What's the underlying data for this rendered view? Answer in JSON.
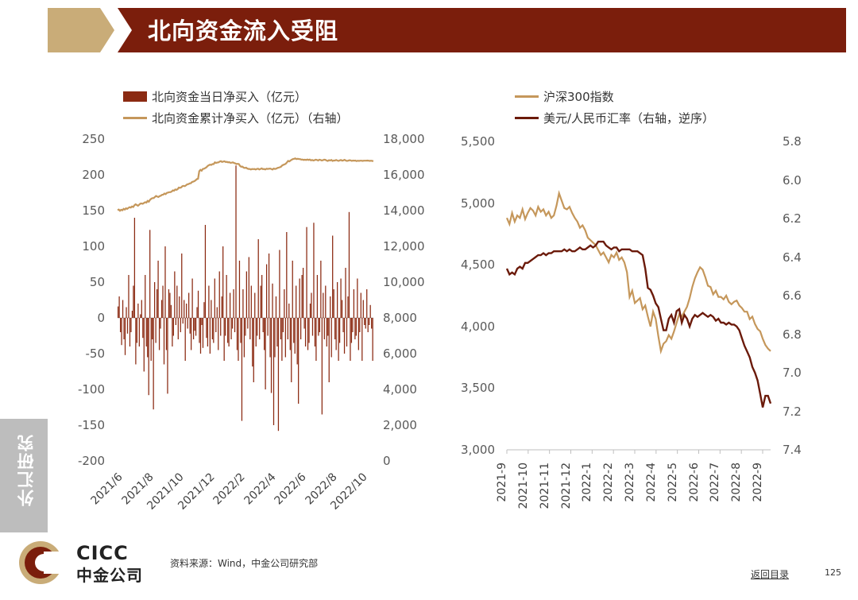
{
  "header": {
    "title": "北向资金流入受阻"
  },
  "sidebar": {
    "label": "外汇研究"
  },
  "footer": {
    "logo_en": "CICC",
    "logo_cn": "中金公司",
    "source": "资料来源：Wind，中金公司研究部",
    "back_link": "返回目录",
    "page_number": "125"
  },
  "colors": {
    "brand": "#7b1e0c",
    "gold": "#c7a36e",
    "bar": "#8b2a12",
    "tan": "#c5975b",
    "fx": "#6b1a0a"
  },
  "chart_data": [
    {
      "type": "bar+line",
      "legend": [
        {
          "label": "北向资金当日净买入（亿元）",
          "kind": "bar"
        },
        {
          "label": "北向资金累计净买入（亿元）（右轴）",
          "kind": "line"
        }
      ],
      "ylim": [
        -200,
        250
      ],
      "y_ticks": [
        "250",
        "200",
        "150",
        "100",
        "50",
        "0",
        "-50",
        "-100",
        "-150",
        "-200"
      ],
      "y2lim": [
        0,
        18000
      ],
      "y2_ticks": [
        "18,000",
        "16,000",
        "14,000",
        "12,000",
        "10,000",
        "8,000",
        "6,000",
        "4,000",
        "2,000",
        "0"
      ],
      "x_ticks": [
        "2021/6",
        "2021/8",
        "2021/10",
        "2021/12",
        "2022/2",
        "2022/4",
        "2022/6",
        "2022/8",
        "2022/10"
      ],
      "daily_net_buy": [
        16,
        30,
        -20,
        -38,
        25,
        -30,
        -52,
        15,
        -22,
        60,
        -40,
        -20,
        10,
        45,
        140,
        -65,
        -35,
        20,
        -40,
        5,
        25,
        -28,
        -75,
        60,
        -40,
        -55,
        -108,
        123,
        -60,
        -30,
        -128,
        50,
        -35,
        40,
        80,
        -45,
        -15,
        25,
        45,
        -65,
        100,
        -45,
        -106,
        40,
        35,
        18,
        -40,
        -25,
        65,
        -10,
        45,
        -30,
        30,
        -20,
        90,
        -8,
        25,
        -60,
        20,
        -15,
        35,
        -22,
        -45,
        55,
        -30,
        -18,
        -25,
        15,
        38,
        -35,
        -50,
        -10,
        -42,
        22,
        130,
        -28,
        -40,
        45,
        -50,
        25,
        -30,
        -35,
        55,
        -20,
        15,
        -45,
        65,
        -25,
        30,
        100,
        -60,
        -25,
        60,
        -35,
        -40,
        35,
        -30,
        -15,
        40,
        -20,
        213,
        -45,
        -60,
        80,
        -35,
        -144,
        40,
        -55,
        -25,
        65,
        -15,
        85,
        -30,
        45,
        -68,
        -90,
        35,
        -40,
        -25,
        110,
        -30,
        45,
        60,
        -20,
        -45,
        -100,
        75,
        -25,
        90,
        -55,
        -105,
        48,
        -150,
        -55,
        30,
        -40,
        -158,
        95,
        -30,
        -60,
        -20,
        40,
        -55,
        120,
        -30,
        20,
        -45,
        -90,
        80,
        -35,
        -50,
        45,
        -65,
        -120,
        55,
        -30,
        60,
        70,
        -15,
        -40,
        127,
        -45,
        -35,
        20,
        35,
        -25,
        133,
        -40,
        -60,
        60,
        -25,
        -20,
        80,
        -135,
        35,
        -30,
        45,
        -40,
        -25,
        -90,
        30,
        -55,
        115,
        40,
        -30,
        -45,
        50,
        -60,
        -35,
        55,
        25,
        -20,
        -50,
        70,
        -40,
        30,
        148,
        -60,
        -35,
        -20,
        40,
        -30,
        -25,
        55,
        -45,
        -20,
        35,
        -60,
        25,
        -10,
        -15,
        40,
        -20,
        -10,
        18,
        -15,
        -60
      ],
      "cumulative_net_buy": [
        14030,
        14060,
        13990,
        14050,
        14020,
        14100,
        14060,
        14130,
        14100,
        14150,
        14190,
        14170,
        14230,
        14200,
        14300,
        14350,
        14310,
        14270,
        14330,
        14390,
        14400,
        14380,
        14430,
        14470,
        14450,
        14540,
        14500,
        14600,
        14660,
        14700,
        14700,
        14760,
        14820,
        14780,
        14760,
        14810,
        14830,
        14880,
        14890,
        14950,
        14920,
        14990,
        15010,
        15030,
        15030,
        15060,
        15130,
        15110,
        15180,
        15160,
        15200,
        15290,
        15270,
        15300,
        15370,
        15380,
        15370,
        15420,
        15470,
        15480,
        15520,
        15530,
        15600,
        15620,
        15650,
        15700,
        15760,
        15780,
        16200,
        16280,
        16230,
        16330,
        16340,
        16380,
        16420,
        16500,
        16540,
        16570,
        16550,
        16600,
        16600,
        16700,
        16660,
        16690,
        16700,
        16740,
        16770,
        16720,
        16740,
        16760,
        16720,
        16730,
        16700,
        16710,
        16670,
        16680,
        16700,
        16660,
        16640,
        16600,
        16620,
        16600,
        16500,
        16450,
        16460,
        16400,
        16380,
        16400,
        16350,
        16330,
        16330,
        16300,
        16330,
        16320,
        16330,
        16300,
        16330,
        16340,
        16300,
        16330,
        16360,
        16320,
        16330,
        16300,
        16340,
        16330,
        16340,
        16350,
        16330,
        16300,
        16350,
        16330,
        16340,
        16380,
        16400,
        16420,
        16450,
        16520,
        16560,
        16580,
        16620,
        16700,
        16780,
        16750,
        16800,
        16850,
        16880,
        16900,
        16920,
        16880,
        16900,
        16880,
        16880,
        16850,
        16860,
        16830,
        16850,
        16830,
        16860,
        16830,
        16860,
        16810,
        16830,
        16800,
        16820,
        16850,
        16830,
        16800,
        16850,
        16830,
        16800,
        16820,
        16850,
        16840,
        16800,
        16780,
        16820,
        16800,
        16830,
        16780,
        16800,
        16800,
        16830,
        16800,
        16780,
        16810,
        16830,
        16790,
        16810,
        16840,
        16800,
        16780,
        16790,
        16820,
        16810,
        16780,
        16800,
        16790,
        16800,
        16770,
        16790,
        16780,
        16790,
        16790,
        16780,
        16790,
        16790,
        16790,
        16800,
        16790,
        16780,
        16790,
        16780,
        16770
      ]
    },
    {
      "type": "line",
      "legend": [
        {
          "label": "沪深300指数",
          "kind": "line"
        },
        {
          "label": "美元/人民币汇率（右轴，逆序）",
          "kind": "line"
        }
      ],
      "ylim": [
        3000,
        5500
      ],
      "y_ticks": [
        "5,500",
        "5,000",
        "4,500",
        "4,000",
        "3,500",
        "3,000"
      ],
      "y2lim": [
        5.8,
        7.4
      ],
      "y2_inverted": true,
      "y2_ticks": [
        "5.8",
        "6.0",
        "6.2",
        "6.4",
        "6.6",
        "6.8",
        "7.0",
        "7.2",
        "7.4"
      ],
      "x_ticks": [
        "2021-9",
        "2021-10",
        "2021-11",
        "2021-12",
        "2022-1",
        "2022-2",
        "2022-3",
        "2022-4",
        "2022-5",
        "2022-6",
        "2022-7",
        "2022-8",
        "2022-9"
      ],
      "series": [
        {
          "name": "沪深300指数",
          "values": [
            4880,
            4830,
            4920,
            4850,
            4900,
            4880,
            4950,
            4870,
            4920,
            4960,
            4940,
            4900,
            4970,
            4930,
            4950,
            4900,
            4930,
            4880,
            4900,
            4980,
            5080,
            5020,
            4960,
            4950,
            4970,
            4920,
            4880,
            4850,
            4800,
            4820,
            4780,
            4720,
            4700,
            4680,
            4660,
            4620,
            4580,
            4600,
            4560,
            4520,
            4580,
            4560,
            4600,
            4540,
            4560,
            4520,
            4440,
            4240,
            4290,
            4190,
            4210,
            4230,
            4140,
            4170,
            4080,
            4000,
            4120,
            4060,
            3920,
            3800,
            3860,
            3880,
            3930,
            3900,
            3960,
            4030,
            4100,
            4080,
            4120,
            4160,
            4230,
            4320,
            4390,
            4440,
            4480,
            4460,
            4400,
            4330,
            4320,
            4260,
            4290,
            4240,
            4240,
            4220,
            4250,
            4200,
            4180,
            4200,
            4210,
            4170,
            4150,
            4120,
            4120,
            4060,
            4080,
            4020,
            3980,
            3960,
            3900,
            3850,
            3820,
            3800
          ]
        },
        {
          "name": "美元/人民币汇率",
          "values": [
            6.46,
            6.49,
            6.48,
            6.49,
            6.46,
            6.45,
            6.46,
            6.43,
            6.43,
            6.42,
            6.41,
            6.4,
            6.39,
            6.39,
            6.38,
            6.39,
            6.38,
            6.38,
            6.37,
            6.37,
            6.37,
            6.37,
            6.36,
            6.37,
            6.36,
            6.37,
            6.37,
            6.36,
            6.35,
            6.36,
            6.36,
            6.35,
            6.34,
            6.35,
            6.34,
            6.32,
            6.32,
            6.32,
            6.34,
            6.35,
            6.36,
            6.35,
            6.35,
            6.37,
            6.36,
            6.36,
            6.36,
            6.36,
            6.37,
            6.37,
            6.37,
            6.38,
            6.39,
            6.46,
            6.56,
            6.57,
            6.6,
            6.64,
            6.66,
            6.72,
            6.78,
            6.78,
            6.72,
            6.7,
            6.74,
            6.68,
            6.67,
            6.74,
            6.7,
            6.72,
            6.76,
            6.72,
            6.7,
            6.71,
            6.7,
            6.69,
            6.7,
            6.71,
            6.7,
            6.71,
            6.73,
            6.72,
            6.74,
            6.74,
            6.75,
            6.74,
            6.75,
            6.75,
            6.76,
            6.78,
            6.82,
            6.86,
            6.89,
            6.92,
            6.97,
            7.0,
            7.04,
            7.11,
            7.18,
            7.12,
            7.12,
            7.16
          ]
        }
      ]
    }
  ]
}
